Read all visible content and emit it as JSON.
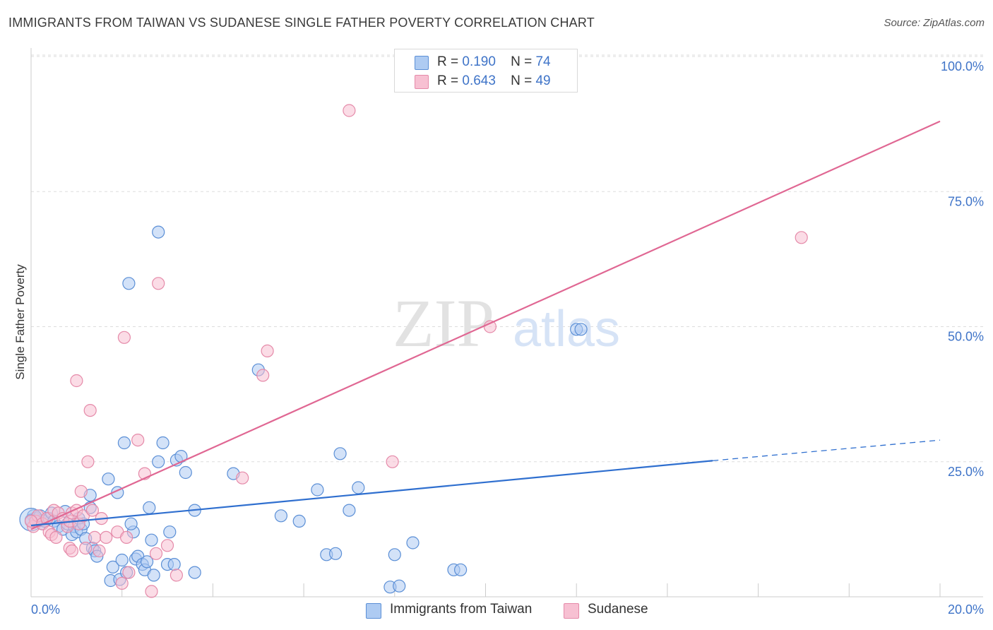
{
  "header": {
    "title": "IMMIGRANTS FROM TAIWAN VS SUDANESE SINGLE FATHER POVERTY CORRELATION CHART",
    "source": "Source: ZipAtlas.com"
  },
  "watermark": {
    "zip": "ZIP",
    "atlas": "atlas"
  },
  "legend_top": {
    "rows": [
      {
        "r_label": "R =",
        "r_value": "0.190",
        "n_label": "N =",
        "n_value": "74"
      },
      {
        "r_label": "R =",
        "r_value": "0.643",
        "n_label": "N =",
        "n_value": "49"
      }
    ]
  },
  "colors": {
    "blue_fill": "#aecbf2",
    "blue_stroke": "#5b8fd6",
    "blue_line": "#2f6fcf",
    "pink_fill": "#f7c0d2",
    "pink_stroke": "#e58aa9",
    "pink_line": "#e06793",
    "axis_text": "#3f74c8",
    "grid": "#dddddd"
  },
  "chart_data": {
    "type": "scatter",
    "title": "IMMIGRANTS FROM TAIWAN VS SUDANESE SINGLE FATHER POVERTY CORRELATION CHART",
    "xlabel": "",
    "ylabel": "Single Father Poverty",
    "xlim": [
      0,
      20
    ],
    "ylim": [
      0,
      100
    ],
    "x_tick_labels": [
      "0.0%",
      "20.0%"
    ],
    "y_tick_labels": [
      "100.0%",
      "75.0%",
      "50.0%",
      "25.0%"
    ],
    "y_ticks": [
      100,
      75,
      50,
      25
    ],
    "grid": true,
    "legend_position": "top-center",
    "series": [
      {
        "name": "Immigrants from Taiwan",
        "color": "#5b8fd6",
        "r": 0.19,
        "n": 74,
        "trend": {
          "x": [
            0,
            15
          ],
          "y": [
            13.2,
            25.2
          ],
          "dashed_to": [
            20.0,
            29.0
          ]
        },
        "points": [
          [
            0.05,
            15.0
          ],
          [
            0.1,
            14.5
          ],
          [
            0.15,
            14.0
          ],
          [
            0.2,
            15.0
          ],
          [
            0.25,
            13.5
          ],
          [
            0.3,
            14.0
          ],
          [
            0.4,
            14.5
          ],
          [
            0.45,
            15.5
          ],
          [
            0.5,
            14.0
          ],
          [
            0.6,
            13.0
          ],
          [
            0.7,
            12.5
          ],
          [
            0.75,
            15.8
          ],
          [
            0.8,
            13.5
          ],
          [
            0.9,
            11.5
          ],
          [
            0.95,
            13.0
          ],
          [
            1.0,
            12.0
          ],
          [
            1.05,
            14.5
          ],
          [
            1.1,
            12.5
          ],
          [
            1.15,
            13.5
          ],
          [
            1.2,
            10.8
          ],
          [
            1.3,
            16.5
          ],
          [
            1.35,
            9.0
          ],
          [
            1.4,
            8.5
          ],
          [
            1.45,
            7.5
          ],
          [
            1.3,
            18.8
          ],
          [
            1.7,
            21.8
          ],
          [
            1.9,
            19.3
          ],
          [
            1.75,
            3.0
          ],
          [
            1.8,
            5.5
          ],
          [
            1.95,
            3.2
          ],
          [
            2.0,
            6.8
          ],
          [
            2.05,
            28.5
          ],
          [
            2.1,
            4.5
          ],
          [
            2.15,
            58.0
          ],
          [
            2.25,
            12.0
          ],
          [
            2.2,
            13.5
          ],
          [
            2.3,
            7.0
          ],
          [
            2.35,
            7.5
          ],
          [
            2.45,
            6.0
          ],
          [
            2.5,
            5.0
          ],
          [
            2.55,
            6.5
          ],
          [
            2.6,
            16.5
          ],
          [
            2.65,
            10.5
          ],
          [
            2.7,
            4.0
          ],
          [
            2.8,
            67.5
          ],
          [
            2.8,
            25.0
          ],
          [
            2.9,
            28.5
          ],
          [
            3.0,
            6.0
          ],
          [
            3.05,
            12.0
          ],
          [
            3.15,
            6.0
          ],
          [
            3.2,
            25.3
          ],
          [
            3.3,
            26.0
          ],
          [
            3.4,
            23.0
          ],
          [
            3.6,
            16.0
          ],
          [
            3.6,
            4.5
          ],
          [
            4.45,
            22.8
          ],
          [
            5.0,
            42.0
          ],
          [
            5.5,
            15.0
          ],
          [
            5.9,
            14.0
          ],
          [
            6.3,
            19.8
          ],
          [
            6.5,
            7.8
          ],
          [
            6.7,
            8.0
          ],
          [
            6.8,
            26.5
          ],
          [
            7.0,
            16.0
          ],
          [
            7.2,
            20.2
          ],
          [
            7.9,
            1.8
          ],
          [
            8.1,
            2.0
          ],
          [
            8.0,
            7.8
          ],
          [
            8.4,
            10.0
          ],
          [
            9.3,
            5.0
          ],
          [
            9.45,
            5.0
          ],
          [
            12.0,
            49.5
          ],
          [
            12.1,
            49.5
          ],
          [
            0.0,
            14.2
          ]
        ]
      },
      {
        "name": "Sudanese",
        "color": "#e58aa9",
        "r": 0.643,
        "n": 49,
        "trend": {
          "x": [
            0,
            20
          ],
          "y": [
            12.5,
            88.0
          ]
        },
        "points": [
          [
            0.05,
            13.0
          ],
          [
            0.1,
            14.0
          ],
          [
            0.15,
            15.0
          ],
          [
            0.25,
            13.5
          ],
          [
            0.35,
            14.5
          ],
          [
            0.4,
            12.0
          ],
          [
            0.45,
            11.5
          ],
          [
            0.5,
            16.0
          ],
          [
            0.55,
            11.0
          ],
          [
            0.6,
            15.5
          ],
          [
            0.7,
            14.5
          ],
          [
            0.8,
            13.0
          ],
          [
            0.85,
            14.0
          ],
          [
            0.9,
            15.5
          ],
          [
            0.85,
            9.0
          ],
          [
            0.9,
            8.5
          ],
          [
            1.0,
            16.0
          ],
          [
            1.05,
            13.5
          ],
          [
            1.0,
            40.0
          ],
          [
            1.1,
            19.5
          ],
          [
            1.15,
            15.0
          ],
          [
            1.2,
            9.0
          ],
          [
            1.25,
            25.0
          ],
          [
            1.3,
            34.5
          ],
          [
            1.35,
            16.0
          ],
          [
            1.4,
            11.0
          ],
          [
            1.5,
            8.5
          ],
          [
            1.55,
            14.5
          ],
          [
            1.65,
            11.0
          ],
          [
            1.9,
            12.0
          ],
          [
            2.0,
            2.5
          ],
          [
            2.05,
            48.0
          ],
          [
            2.1,
            11.0
          ],
          [
            2.15,
            4.5
          ],
          [
            2.35,
            29.0
          ],
          [
            2.5,
            22.8
          ],
          [
            2.65,
            1.0
          ],
          [
            2.75,
            8.0
          ],
          [
            2.8,
            58.0
          ],
          [
            3.0,
            9.5
          ],
          [
            3.2,
            4.0
          ],
          [
            4.65,
            22.0
          ],
          [
            5.1,
            41.0
          ],
          [
            5.2,
            45.5
          ],
          [
            7.0,
            90.0
          ],
          [
            7.95,
            25.0
          ],
          [
            10.1,
            50.0
          ],
          [
            16.95,
            66.5
          ],
          [
            0.0,
            14.0
          ]
        ]
      }
    ]
  },
  "legend_bottom": {
    "items": [
      {
        "label": "Immigrants from Taiwan"
      },
      {
        "label": "Sudanese"
      }
    ]
  }
}
